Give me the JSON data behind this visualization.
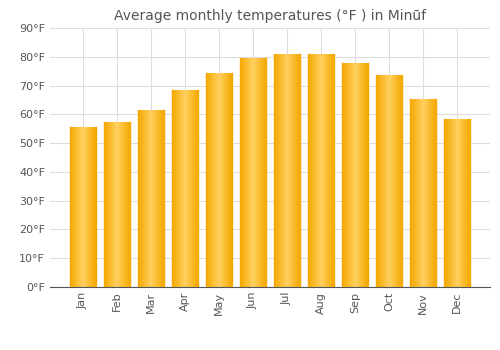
{
  "title": "Average monthly temperatures (°F ) in Minūf",
  "months": [
    "Jan",
    "Feb",
    "Mar",
    "Apr",
    "May",
    "Jun",
    "Jul",
    "Aug",
    "Sep",
    "Oct",
    "Nov",
    "Dec"
  ],
  "values": [
    55.5,
    57.5,
    61.5,
    68.5,
    74.5,
    79.5,
    81.0,
    81.0,
    78.0,
    73.5,
    65.5,
    58.5
  ],
  "bar_color_left": "#F5A800",
  "bar_color_center": "#FFD060",
  "bar_color_right": "#F5A800",
  "background_color": "#FFFFFF",
  "grid_color": "#DDDDDD",
  "text_color": "#555555",
  "ylim": [
    0,
    90
  ],
  "yticks": [
    0,
    10,
    20,
    30,
    40,
    50,
    60,
    70,
    80,
    90
  ],
  "title_fontsize": 10,
  "tick_fontsize": 8,
  "bar_width": 0.75
}
